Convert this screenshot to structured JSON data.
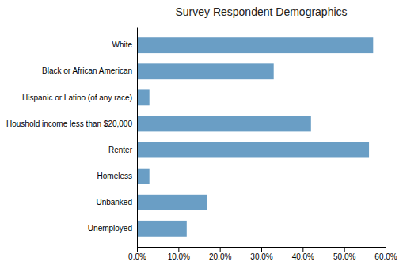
{
  "chart_data": {
    "type": "bar",
    "orientation": "horizontal",
    "title": "Survey Respondent Demographics",
    "categories": [
      "Unemployed",
      "Unbanked",
      "Homeless",
      "Renter",
      "Houshold income less than $20,000",
      "Hispanic or Latino (of any race)",
      "Black or African American",
      "White"
    ],
    "values": [
      0.12,
      0.17,
      0.03,
      0.56,
      0.42,
      0.03,
      0.33,
      0.57
    ],
    "color": "#6A9EC5",
    "xlim": [
      0,
      0.6
    ],
    "xticks": [
      {
        "value": 0.0,
        "label": "0.0%"
      },
      {
        "value": 0.1,
        "label": "10.0%"
      },
      {
        "value": 0.2,
        "label": "20.0%"
      },
      {
        "value": 0.3,
        "label": "30.0%"
      },
      {
        "value": 0.4,
        "label": "40.0%"
      },
      {
        "value": 0.5,
        "label": "50.0%"
      },
      {
        "value": 0.6,
        "label": "60.0%"
      }
    ],
    "grid": false
  }
}
